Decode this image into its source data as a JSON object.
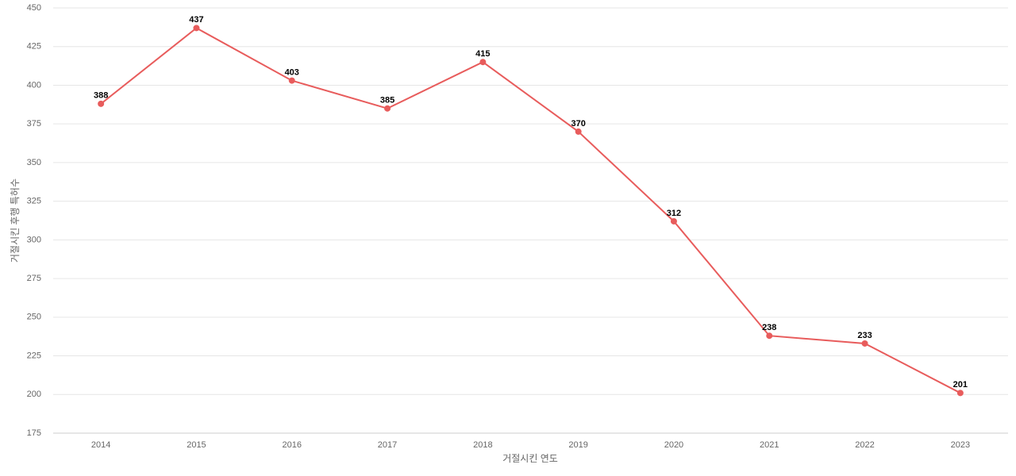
{
  "chart_data": {
    "type": "line",
    "x_label": "거절시킨 연도",
    "y_label": "거절시킨 후행 특허수",
    "categories": [
      "2014",
      "2015",
      "2016",
      "2017",
      "2018",
      "2019",
      "2020",
      "2021",
      "2022",
      "2023"
    ],
    "values": [
      388,
      437,
      403,
      385,
      415,
      370,
      312,
      238,
      233,
      201
    ],
    "color": "#e85c5c",
    "ylim": [
      175,
      450
    ],
    "yticks": [
      175,
      200,
      225,
      250,
      275,
      300,
      325,
      350,
      375,
      400,
      425,
      450
    ],
    "grid": true
  }
}
